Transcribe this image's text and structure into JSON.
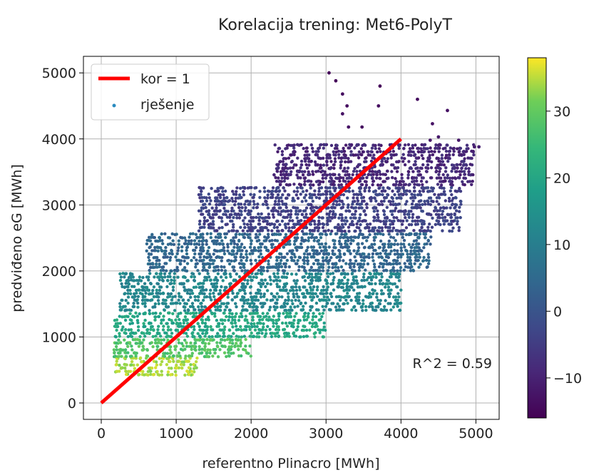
{
  "chart_data": {
    "type": "scatter",
    "title": "Korelacija trening: Met6-PolyT",
    "xlabel": "referentno Plinacro [MWh]",
    "ylabel": "predviđeno eG [MWh]",
    "xlim": [
      -250,
      5320
    ],
    "ylim": [
      -280,
      5250
    ],
    "xticks": [
      0,
      1000,
      2000,
      3000,
      4000,
      5000
    ],
    "yticks": [
      0,
      1000,
      2000,
      3000,
      4000,
      5000
    ],
    "grid": true,
    "legend": {
      "placement": "top-left",
      "entries": [
        "kor = 1",
        "rješenje"
      ]
    },
    "annotation": "R^2 = 0.59",
    "line_series": {
      "name": "kor = 1",
      "x": [
        0,
        4000
      ],
      "y": [
        0,
        4000
      ],
      "color": "#ff0000"
    },
    "scatter_series": {
      "name": "rješenje",
      "colormap": "viridis",
      "color_range": [
        -16,
        38
      ],
      "note_points": [
        [
          3040,
          5000,
          -15
        ],
        [
          3130,
          4880,
          -15
        ],
        [
          3220,
          4680,
          -14
        ],
        [
          3280,
          4500,
          -14
        ],
        [
          3220,
          4380,
          -13
        ],
        [
          3300,
          4180,
          -13
        ],
        [
          3480,
          4180,
          -14
        ],
        [
          3700,
          4500,
          -14
        ],
        [
          3720,
          4800,
          -15
        ],
        [
          4220,
          4600,
          -14
        ],
        [
          4620,
          4430,
          -13
        ],
        [
          4420,
          4230,
          -13
        ],
        [
          4500,
          4030,
          -12
        ],
        [
          4390,
          3980,
          -12
        ],
        [
          4770,
          3980,
          -12
        ],
        [
          4980,
          3880,
          -11
        ],
        [
          5040,
          3880,
          -11
        ],
        [
          3420,
          3580,
          -9
        ],
        [
          3650,
          3580,
          -9
        ],
        [
          3800,
          3780,
          -10
        ]
      ],
      "density_bands": [
        {
          "y": [
            420,
            700
          ],
          "x": [
            180,
            1300
          ],
          "value": 34
        },
        {
          "y": [
            700,
            1000
          ],
          "x": [
            170,
            2000
          ],
          "value": 28
        },
        {
          "y": [
            1000,
            1400
          ],
          "x": [
            180,
            3000
          ],
          "value": 20
        },
        {
          "y": [
            1400,
            2000
          ],
          "x": [
            250,
            4000
          ],
          "value": 12
        },
        {
          "y": [
            2000,
            2600
          ],
          "x": [
            600,
            4400
          ],
          "value": 4
        },
        {
          "y": [
            2600,
            3300
          ],
          "x": [
            1300,
            4800
          ],
          "value": -4
        },
        {
          "y": [
            3300,
            3950
          ],
          "x": [
            2300,
            4980
          ],
          "value": -9
        }
      ]
    },
    "colorbar": {
      "ticks": [
        -10,
        0,
        10,
        20,
        30
      ],
      "range": [
        -16,
        38
      ]
    }
  }
}
